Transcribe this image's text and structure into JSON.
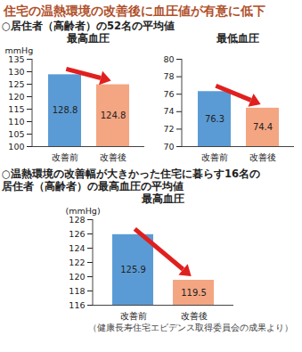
{
  "title": "住宅の温熱環境の改善後に血圧値が有意に低下",
  "notes": [
    [
      "○居住者（高齢者）の52名の平均値"
    ],
    [
      "○温熱環境の改善幅が大きかった住宅に暮らす16名の",
      "居住者（高齢者）の最高血圧の平均値"
    ]
  ],
  "caption": "（健康長寿住宅エビデンス取得委員会の成果より）",
  "chart_data": [
    {
      "type": "bar",
      "title": "最高血圧",
      "y_label": "mmHg",
      "categories": [
        "改善前",
        "改善後"
      ],
      "values": [
        128.8,
        124.8
      ],
      "colors": [
        "#5b9bd5",
        "#f4a582"
      ],
      "ylim": [
        100,
        135
      ],
      "yticks": [
        100,
        105,
        110,
        115,
        120,
        125,
        130,
        135
      ],
      "data_labels": true
    },
    {
      "type": "bar",
      "title": "最低血圧",
      "categories": [
        "改善前",
        "改善後"
      ],
      "values": [
        76.3,
        74.4
      ],
      "colors": [
        "#5b9bd5",
        "#f4a582"
      ],
      "ylim": [
        70,
        80
      ],
      "yticks": [
        70,
        72,
        74,
        76,
        78,
        80
      ],
      "data_labels": true
    },
    {
      "type": "bar",
      "title": "最高血圧",
      "y_label": "(mmHg)",
      "categories": [
        "改善前",
        "改善後"
      ],
      "values": [
        125.9,
        119.5
      ],
      "colors": [
        "#5b9bd5",
        "#f4a582"
      ],
      "ylim": [
        116,
        128
      ],
      "yticks": [
        116,
        118,
        120,
        122,
        124,
        126,
        128
      ],
      "data_labels": true
    }
  ]
}
